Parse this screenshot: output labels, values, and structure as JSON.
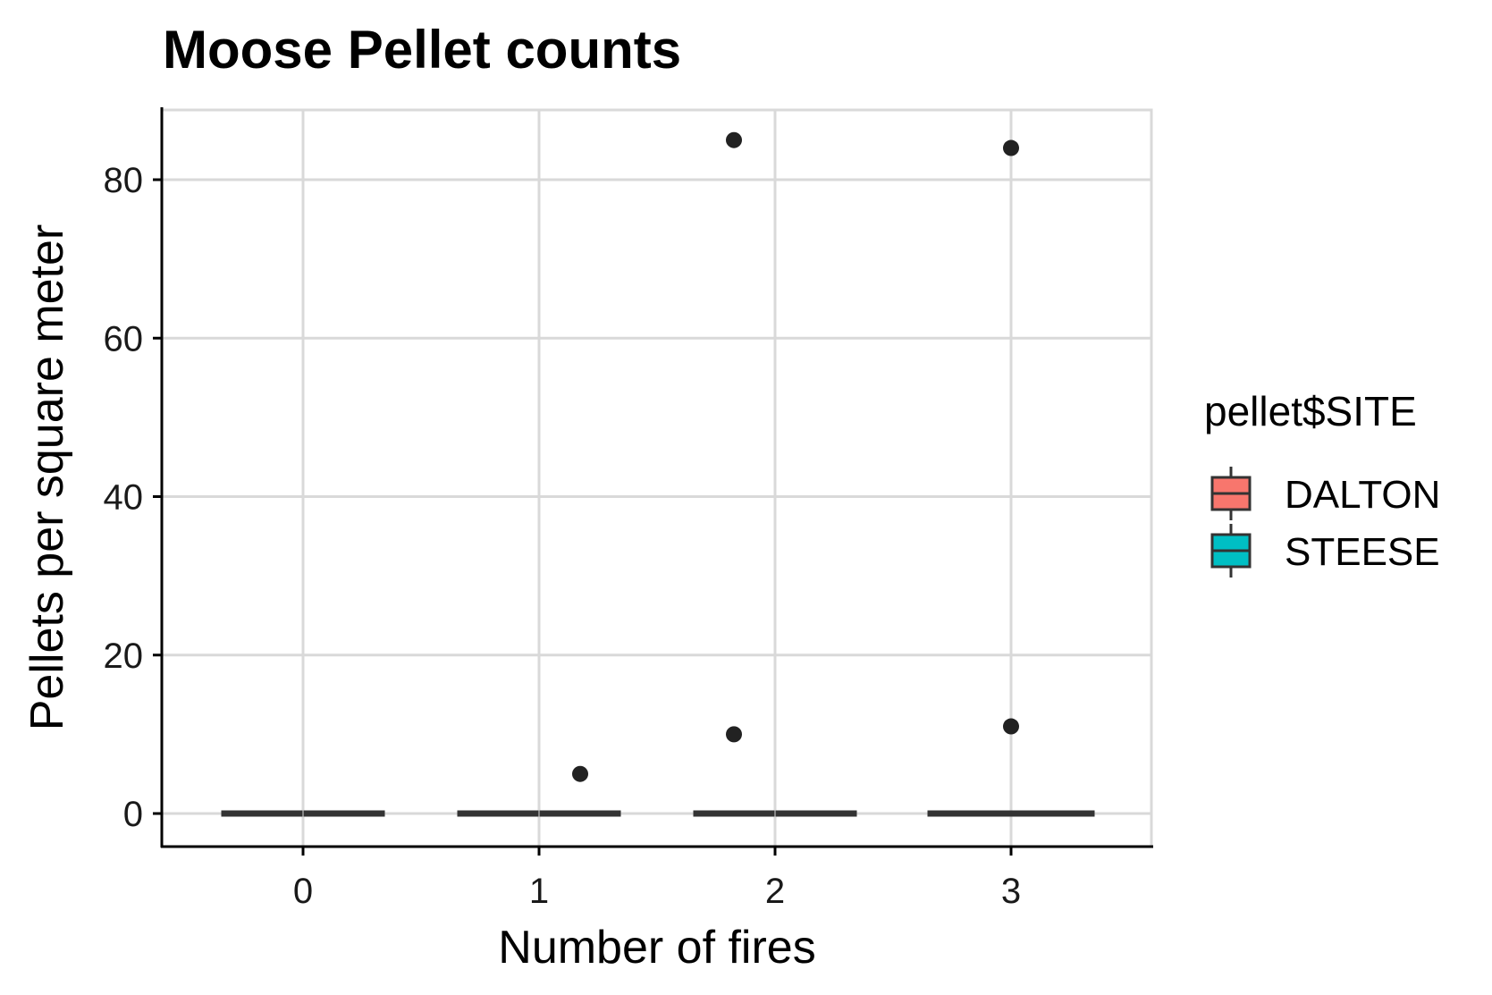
{
  "chart_data": {
    "type": "boxplot",
    "title": "Moose Pellet counts",
    "xlabel": "Number of fires",
    "ylabel": "Pellets per square meter",
    "categories": [
      "0",
      "1",
      "2",
      "3"
    ],
    "x_ticks": [
      "0",
      "1",
      "2",
      "3"
    ],
    "ylim": [
      -4.5,
      89
    ],
    "y_ticks": [
      0,
      20,
      40,
      60,
      80
    ],
    "y_tick_labels": [
      "0",
      "20",
      "40",
      "60",
      "80"
    ],
    "grid": true,
    "legend": {
      "title": "pellet$SITE",
      "placement": "right",
      "entries": [
        {
          "name": "DALTON",
          "color": "#F8766D"
        },
        {
          "name": "STEESE",
          "color": "#00BFC4"
        }
      ]
    },
    "series": [
      {
        "name": "DALTON",
        "color": "#F8766D",
        "boxes": [
          {
            "x": "0",
            "min": 0,
            "q1": 0,
            "median": 0,
            "q3": 0,
            "max": 0,
            "outliers": []
          },
          {
            "x": "1",
            "min": 0,
            "q1": 0,
            "median": 0,
            "q3": 0,
            "max": 0,
            "outliers": []
          },
          {
            "x": "2",
            "min": 0,
            "q1": 0,
            "median": 0,
            "q3": 0,
            "max": 0,
            "outliers": [
              10,
              85
            ]
          },
          {
            "x": "3",
            "min": 0,
            "q1": 0,
            "median": 0,
            "q3": 0,
            "max": 0,
            "outliers": [
              11,
              84
            ]
          }
        ]
      },
      {
        "name": "STEESE",
        "color": "#00BFC4",
        "boxes": [
          {
            "x": "0",
            "min": 0,
            "q1": 0,
            "median": 0,
            "q3": 0,
            "max": 0,
            "outliers": []
          },
          {
            "x": "1",
            "min": 0,
            "q1": 0,
            "median": 0,
            "q3": 0,
            "max": 0,
            "outliers": [
              5
            ]
          },
          {
            "x": "2",
            "min": 0,
            "q1": 0,
            "median": 0,
            "q3": 0,
            "max": 0,
            "outliers": []
          }
        ]
      }
    ],
    "colors": {
      "grid": "#d9d9d9",
      "axis": "#000000",
      "box_line": "#333333",
      "point": "#222222"
    }
  }
}
